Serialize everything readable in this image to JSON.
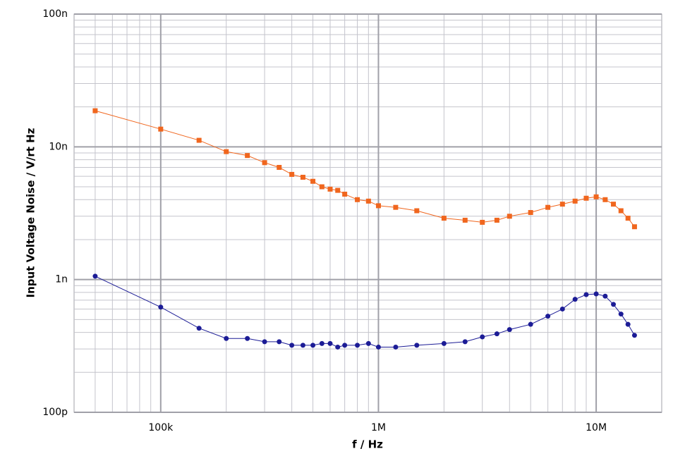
{
  "chart_data": {
    "type": "line",
    "xlabel": "f / Hz",
    "ylabel": "Input Voltage Noise / V/rt Hz",
    "xscale": "log",
    "yscale": "log",
    "xlim": [
      40000,
      20000000
    ],
    "ylim": [
      1e-10,
      1e-07
    ],
    "xticks": [
      {
        "value": 100000,
        "label": "100k"
      },
      {
        "value": 1000000,
        "label": "1M"
      },
      {
        "value": 10000000,
        "label": "10M"
      }
    ],
    "yticks": [
      {
        "value": 1e-10,
        "label": "100p"
      },
      {
        "value": 1e-09,
        "label": "1n"
      },
      {
        "value": 1e-08,
        "label": "10n"
      },
      {
        "value": 1e-07,
        "label": "100n"
      }
    ],
    "grid": true,
    "minor_grid": true,
    "x": [
      50000,
      100000,
      150000,
      200000,
      250000,
      300000,
      350000,
      400000,
      450000,
      500000,
      550000,
      600000,
      650000,
      700000,
      800000,
      900000,
      1000000,
      1200000,
      1500000,
      2000000,
      2500000,
      3000000,
      3500000,
      4000000,
      5000000,
      6000000,
      7000000,
      8000000,
      9000000,
      10000000,
      11000000,
      12000000,
      13000000,
      14000000,
      15000000
    ],
    "series": [
      {
        "color": "#f0661e",
        "marker": "square",
        "values": [
          1.87e-08,
          1.36e-08,
          1.12e-08,
          9.2e-09,
          8.6e-09,
          7.6e-09,
          7e-09,
          6.2e-09,
          5.9e-09,
          5.5e-09,
          5e-09,
          4.8e-09,
          4.7e-09,
          4.4e-09,
          4e-09,
          3.9e-09,
          3.6e-09,
          3.5e-09,
          3.3e-09,
          2.9e-09,
          2.8e-09,
          2.7e-09,
          2.8e-09,
          3e-09,
          3.2e-09,
          3.5e-09,
          3.7e-09,
          3.9e-09,
          4.1e-09,
          4.2e-09,
          4e-09,
          3.7e-09,
          3.3e-09,
          2.9e-09,
          2.5e-09
        ]
      },
      {
        "color": "#1c1c96",
        "marker": "circle",
        "values": [
          1.06e-09,
          6.2e-10,
          4.3e-10,
          3.6e-10,
          3.6e-10,
          3.4e-10,
          3.4e-10,
          3.2e-10,
          3.2e-10,
          3.2e-10,
          3.3e-10,
          3.3e-10,
          3.1e-10,
          3.2e-10,
          3.2e-10,
          3.3e-10,
          3.1e-10,
          3.1e-10,
          3.2e-10,
          3.3e-10,
          3.4e-10,
          3.7e-10,
          3.9e-10,
          4.2e-10,
          4.6e-10,
          5.3e-10,
          6e-10,
          7.1e-10,
          7.7e-10,
          7.8e-10,
          7.5e-10,
          6.5e-10,
          5.5e-10,
          4.6e-10,
          3.8e-10
        ]
      }
    ]
  }
}
